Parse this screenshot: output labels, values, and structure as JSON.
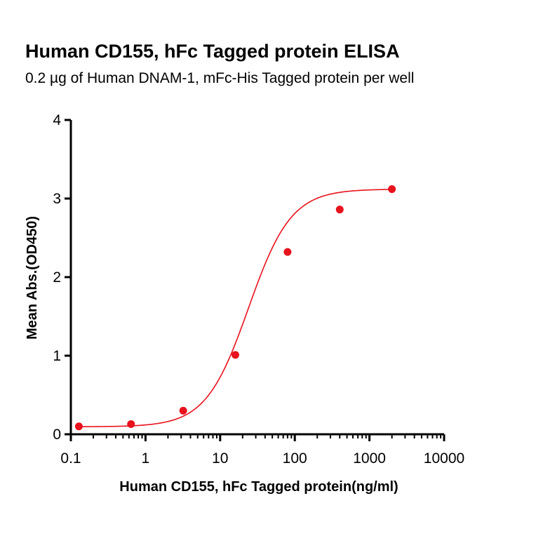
{
  "colors": {
    "series": "#e8121c",
    "axis": "#000000"
  },
  "chart_data": {
    "type": "scatter",
    "title": "Human CD155, hFc Tagged protein ELISA",
    "subtitle": "0.2 µg of Human DNAM-1, mFc-His Tagged protein per well",
    "xlabel": "Human CD155, hFc Tagged protein(ng/ml)",
    "ylabel": "Mean Abs.(OD450)",
    "xscale": "log",
    "xlim": [
      0.1,
      10000
    ],
    "ylim": [
      0,
      4
    ],
    "xticks": [
      "0.1",
      "1",
      "10",
      "100",
      "1000",
      "10000"
    ],
    "yticks": [
      "0",
      "1",
      "2",
      "3",
      "4"
    ],
    "grid": false,
    "points": {
      "x": [
        0.128,
        0.64,
        3.2,
        16,
        80,
        400,
        2000
      ],
      "y": [
        0.1,
        0.13,
        0.3,
        1.01,
        2.32,
        2.86,
        3.12
      ]
    },
    "fit_curve": "four-parameter logistic"
  }
}
